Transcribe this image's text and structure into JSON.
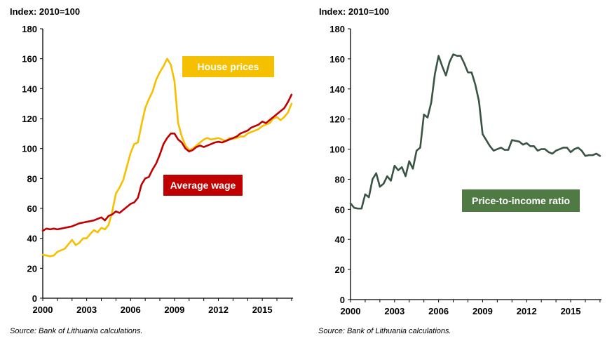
{
  "colors": {
    "house_prices": "#f5c000",
    "average_wage": "#c00000",
    "price_to_income": "#3a5444",
    "ratio_label_bg": "#4f7a44"
  },
  "chart_data": [
    {
      "type": "line",
      "title": "",
      "ylabel": "Index: 2010=100",
      "xlabel": "",
      "ylim": [
        0,
        180
      ],
      "xlim": [
        2000,
        2017.1
      ],
      "y_ticks": [
        "0",
        "20",
        "40",
        "60",
        "80",
        "100",
        "120",
        "140",
        "160",
        "180"
      ],
      "x_ticks": [
        "2000",
        "2003",
        "2006",
        "2009",
        "2012",
        "2015"
      ],
      "grid": false,
      "legend": "inline labels",
      "series": [
        {
          "name": "House prices",
          "x": [
            2000.0,
            2000.25,
            2000.5,
            2000.75,
            2001.0,
            2001.25,
            2001.5,
            2001.75,
            2002.0,
            2002.25,
            2002.5,
            2002.75,
            2003.0,
            2003.25,
            2003.5,
            2003.75,
            2004.0,
            2004.25,
            2004.5,
            2004.75,
            2005.0,
            2005.25,
            2005.5,
            2005.75,
            2006.0,
            2006.25,
            2006.5,
            2006.75,
            2007.0,
            2007.25,
            2007.5,
            2007.75,
            2008.0,
            2008.25,
            2008.5,
            2008.75,
            2009.0,
            2009.25,
            2009.5,
            2009.75,
            2010.0,
            2010.25,
            2010.5,
            2010.75,
            2011.0,
            2011.25,
            2011.5,
            2011.75,
            2012.0,
            2012.25,
            2012.5,
            2012.75,
            2013.0,
            2013.25,
            2013.5,
            2013.75,
            2014.0,
            2014.25,
            2014.5,
            2014.75,
            2015.0,
            2015.25,
            2015.5,
            2015.75,
            2016.0,
            2016.25,
            2016.5,
            2016.75,
            2017.0
          ],
          "values": [
            29,
            28.5,
            28,
            28.5,
            31,
            32,
            33,
            36,
            39,
            35.5,
            37,
            40,
            40,
            43,
            45.5,
            44,
            47,
            46,
            49,
            58,
            70,
            74,
            79,
            88,
            97,
            103,
            104,
            116,
            127,
            133,
            138,
            146,
            151,
            155,
            160,
            156,
            145,
            117,
            108,
            102,
            99,
            100,
            102,
            104,
            106,
            107,
            106,
            106.5,
            107,
            106,
            105,
            107,
            106.5,
            107,
            108,
            108,
            110,
            111,
            112,
            113,
            115,
            116,
            117,
            120,
            121,
            119,
            121,
            124,
            130
          ]
        },
        {
          "name": "Average wage",
          "x": [
            2000.0,
            2000.25,
            2000.5,
            2000.75,
            2001.0,
            2001.25,
            2001.5,
            2001.75,
            2002.0,
            2002.25,
            2002.5,
            2002.75,
            2003.0,
            2003.25,
            2003.5,
            2003.75,
            2004.0,
            2004.25,
            2004.5,
            2004.75,
            2005.0,
            2005.25,
            2005.5,
            2005.75,
            2006.0,
            2006.25,
            2006.5,
            2006.75,
            2007.0,
            2007.25,
            2007.5,
            2007.75,
            2008.0,
            2008.25,
            2008.5,
            2008.75,
            2009.0,
            2009.25,
            2009.5,
            2009.75,
            2010.0,
            2010.25,
            2010.5,
            2010.75,
            2011.0,
            2011.25,
            2011.5,
            2011.75,
            2012.0,
            2012.25,
            2012.5,
            2012.75,
            2013.0,
            2013.25,
            2013.5,
            2013.75,
            2014.0,
            2014.25,
            2014.5,
            2014.75,
            2015.0,
            2015.25,
            2015.5,
            2015.75,
            2016.0,
            2016.25,
            2016.5,
            2016.75,
            2017.0
          ],
          "values": [
            45,
            46.5,
            46,
            46.5,
            46,
            46.5,
            47,
            47.5,
            48,
            49,
            50,
            50.5,
            51,
            51.5,
            52,
            53,
            54,
            52,
            55,
            56,
            58,
            57,
            59,
            61,
            63,
            64,
            67,
            76,
            80,
            81,
            86,
            90,
            96,
            103,
            107,
            110,
            110,
            106,
            104,
            100,
            98,
            99,
            101,
            102,
            101,
            102,
            103,
            104,
            104.5,
            104,
            105,
            106,
            107,
            108,
            110,
            111,
            112,
            114,
            115,
            116,
            118,
            117,
            119,
            121,
            123,
            125,
            127,
            131,
            136
          ]
        }
      ],
      "annotations": [
        "House prices",
        "Average wage"
      ],
      "source": "Source: Bank of Lithuania calculations."
    },
    {
      "type": "line",
      "title": "",
      "ylabel": "Index: 2010=100",
      "xlabel": "",
      "ylim": [
        0,
        180
      ],
      "xlim": [
        2000,
        2017.1
      ],
      "y_ticks": [
        "0",
        "20",
        "40",
        "60",
        "80",
        "100",
        "120",
        "140",
        "160",
        "180"
      ],
      "x_ticks": [
        "2000",
        "2003",
        "2006",
        "2009",
        "2012",
        "2015"
      ],
      "grid": false,
      "legend": "inline label",
      "series": [
        {
          "name": "Price-to-income ratio",
          "x": [
            2000.0,
            2000.25,
            2000.5,
            2000.75,
            2001.0,
            2001.25,
            2001.5,
            2001.75,
            2002.0,
            2002.25,
            2002.5,
            2002.75,
            2003.0,
            2003.25,
            2003.5,
            2003.75,
            2004.0,
            2004.25,
            2004.5,
            2004.75,
            2005.0,
            2005.25,
            2005.5,
            2005.75,
            2006.0,
            2006.25,
            2006.5,
            2006.75,
            2007.0,
            2007.25,
            2007.5,
            2007.75,
            2008.0,
            2008.25,
            2008.5,
            2008.75,
            2009.0,
            2009.25,
            2009.5,
            2009.75,
            2010.0,
            2010.25,
            2010.5,
            2010.75,
            2011.0,
            2011.25,
            2011.5,
            2011.75,
            2012.0,
            2012.25,
            2012.5,
            2012.75,
            2013.0,
            2013.25,
            2013.5,
            2013.75,
            2014.0,
            2014.25,
            2014.5,
            2014.75,
            2015.0,
            2015.25,
            2015.5,
            2015.75,
            2016.0,
            2016.25,
            2016.5,
            2016.75,
            2017.0
          ],
          "values": [
            64,
            61,
            60.5,
            60.5,
            70,
            68,
            80,
            84,
            75,
            77,
            82,
            79,
            89,
            86,
            88,
            82,
            92,
            87,
            99,
            101,
            123,
            121,
            131,
            150,
            162,
            155,
            149,
            158,
            163,
            162,
            162,
            157,
            151,
            151,
            143,
            132,
            110,
            106,
            102,
            99,
            100,
            101,
            99.5,
            99.5,
            106,
            105.5,
            105,
            103,
            104,
            102,
            102,
            99,
            100,
            100,
            98,
            97,
            99,
            100,
            101,
            101,
            98,
            100,
            101,
            99,
            95.5,
            96,
            96,
            97,
            95.5
          ]
        }
      ],
      "annotations": [
        "Price-to-income ratio"
      ],
      "source": "Source: Bank of Lithuania calculations."
    }
  ]
}
